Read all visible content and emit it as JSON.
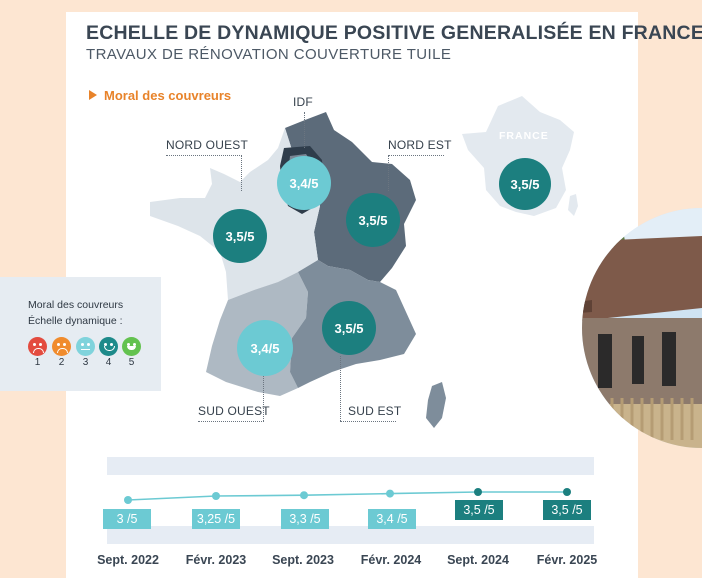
{
  "header": {
    "title": "ECHELLE DE DYNAMIQUE POSITIVE GENERALISÉE EN FRANCE",
    "subtitle": "TRAVAUX DE RÉNOVATION COUVERTURE TUILE"
  },
  "section_label": "Moral des couvreurs",
  "map": {
    "regions": [
      {
        "id": "idf",
        "label": "IDF",
        "score": "3,4/5",
        "tone": "light"
      },
      {
        "id": "nord-ouest",
        "label": "NORD OUEST",
        "score": "3,5/5",
        "tone": "dark"
      },
      {
        "id": "nord-est",
        "label": "NORD EST",
        "score": "3,5/5",
        "tone": "dark"
      },
      {
        "id": "sud-ouest",
        "label": "SUD OUEST",
        "score": "3,4/5",
        "tone": "light"
      },
      {
        "id": "sud-est",
        "label": "SUD EST",
        "score": "3,5/5",
        "tone": "dark"
      }
    ],
    "france": {
      "label": "FRANCE",
      "score": "3,5/5",
      "tone": "dark"
    }
  },
  "colors": {
    "dark_teal": "#1c7f7f",
    "light_teal": "#6ccad3",
    "accent_orange": "#e8832a",
    "map_nord_est": "#5c6b7a",
    "map_nord_ouest": "#dde4ea",
    "map_sud_ouest": "#aeb9c3",
    "map_sud_est": "#7e8d9b"
  },
  "legend": {
    "line1": "Moral des couvreurs",
    "line2": "Échelle dynamique :",
    "faces": [
      {
        "icon": "very-sad-face-icon",
        "num": "1",
        "color": "#e34b3f"
      },
      {
        "icon": "sad-face-icon",
        "num": "2",
        "color": "#f08b2c"
      },
      {
        "icon": "neutral-face-icon",
        "num": "3",
        "color": "#7fd3dc"
      },
      {
        "icon": "happy-face-icon",
        "num": "4",
        "color": "#1d8a8a"
      },
      {
        "icon": "very-happy-face-icon",
        "num": "5",
        "color": "#63c24f"
      }
    ]
  },
  "timeline": [
    {
      "date": "Sept. 2022",
      "value": "3 /5",
      "score": 3,
      "tone": "light"
    },
    {
      "date": "Févr. 2023",
      "value": "3,25 /5",
      "score": 3.25,
      "tone": "light"
    },
    {
      "date": "Sept. 2023",
      "value": "3,3 /5",
      "score": 3.3,
      "tone": "light"
    },
    {
      "date": "Févr. 2024",
      "value": "3,4 /5",
      "score": 3.4,
      "tone": "light"
    },
    {
      "date": "Sept. 2024",
      "value": "3,5 /5",
      "score": 3.5,
      "tone": "dark"
    },
    {
      "date": "Févr. 2025",
      "value": "3,5 /5",
      "score": 3.5,
      "tone": "dark"
    }
  ]
}
